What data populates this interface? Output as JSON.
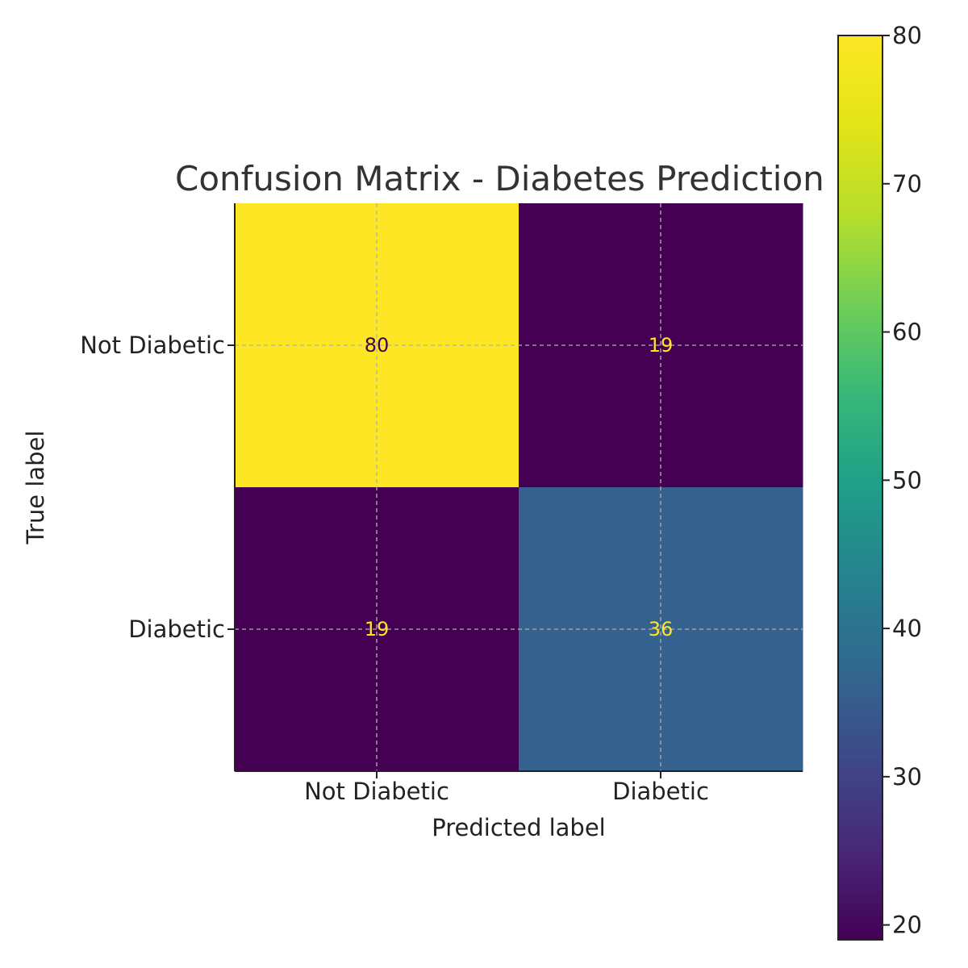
{
  "chart_data": {
    "type": "heatmap",
    "title": "Confusion Matrix - Diabetes Prediction",
    "xlabel": "Predicted label",
    "ylabel": "True label",
    "x_categories": [
      "Not Diabetic",
      "Diabetic"
    ],
    "y_categories": [
      "Not Diabetic",
      "Diabetic"
    ],
    "values": [
      [
        80,
        19
      ],
      [
        19,
        36
      ]
    ],
    "colorbar": {
      "min": 19,
      "max": 80,
      "ticks": [
        20,
        30,
        40,
        50,
        60,
        70,
        80
      ]
    },
    "colormap": "viridis",
    "grid": true
  }
}
